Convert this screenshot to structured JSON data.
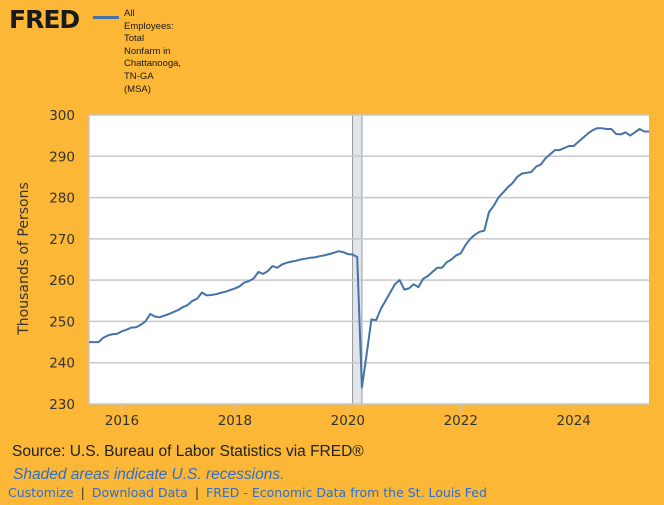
{
  "header": {
    "logo": "FRED",
    "legend_label": "All Employees: Total Nonfarm in Chattanooga, TN-GA (MSA)",
    "legend_lines": [
      "All",
      "Employees:",
      "Total",
      "Nonfarm in",
      "Chattanooga,",
      "TN-GA",
      "(MSA)"
    ]
  },
  "colors": {
    "background": "#fbb735",
    "line": "#4572a7",
    "recession": "#e1e5ec",
    "grid": "#c8c8c8",
    "link": "#2f6fca"
  },
  "chart_data": {
    "type": "line",
    "title": "All Employees: Total Nonfarm in Chattanooga, TN-GA (MSA)",
    "xlabel": "",
    "ylabel": "Thousands of Persons",
    "ylim": [
      230,
      300
    ],
    "yticks": [
      230,
      240,
      250,
      260,
      270,
      280,
      290,
      300
    ],
    "xlim": [
      "2015-06",
      "2025-05"
    ],
    "xticks": [
      "2016",
      "2018",
      "2020",
      "2022",
      "2024"
    ],
    "grid": true,
    "legend": "top-left",
    "recessions": [
      {
        "start": "2020-02",
        "end": "2020-04"
      }
    ],
    "series": [
      {
        "name": "All Employees: Total Nonfarm in Chattanooga, TN-GA (MSA)",
        "start": "2015-06",
        "frequency": "monthly",
        "values": [
          245.0,
          245.0,
          245.0,
          246.0,
          246.6,
          246.9,
          247.0,
          247.6,
          248.0,
          248.5,
          248.6,
          249.2,
          250.0,
          251.8,
          251.2,
          251.0,
          251.4,
          251.8,
          252.3,
          252.8,
          253.5,
          254.0,
          255.0,
          255.5,
          257.0,
          256.3,
          256.4,
          256.6,
          256.9,
          257.2,
          257.6,
          258.0,
          258.5,
          259.4,
          259.8,
          260.4,
          262.0,
          261.5,
          262.2,
          263.4,
          263.0,
          263.8,
          264.2,
          264.5,
          264.7,
          265.0,
          265.2,
          265.4,
          265.5,
          265.8,
          266.0,
          266.3,
          266.6,
          267.0,
          266.8,
          266.3,
          266.2,
          265.6,
          234.0,
          242.0,
          250.5,
          250.3,
          253.0,
          255.0,
          257.0,
          259.0,
          260.0,
          257.7,
          258.0,
          259.0,
          258.3,
          260.3,
          261.0,
          262.0,
          263.0,
          263.0,
          264.3,
          265.0,
          266.0,
          266.5,
          268.5,
          270.0,
          271.0,
          271.7,
          272.0,
          276.5,
          278.0,
          280.0,
          281.2,
          282.5,
          283.5,
          285.0,
          285.8,
          286.0,
          286.2,
          287.5,
          288.0,
          289.5,
          290.5,
          291.5,
          291.5,
          292.0,
          292.5,
          292.5,
          293.5,
          294.5,
          295.5,
          296.3,
          296.8,
          296.8,
          296.6,
          296.6,
          295.4,
          295.3,
          295.8,
          295.0,
          295.8,
          296.6,
          296.0,
          296.0
        ]
      }
    ]
  },
  "footer": {
    "source": "Source: U.S. Bureau of Labor Statistics via FRED®",
    "recession_note": "Shaded areas indicate U.S. recessions.",
    "links": [
      "Customize",
      "Download Data",
      "FRED - Economic Data from the St. Louis Fed"
    ],
    "separator": "|"
  }
}
